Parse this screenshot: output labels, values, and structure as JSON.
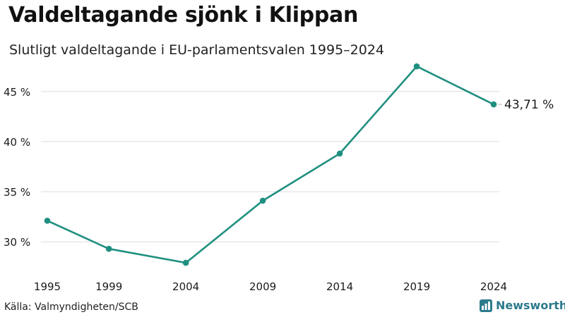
{
  "header": {
    "title": "Valdeltagande sjönk i Klippan",
    "subtitle": "Slutligt valdeltagande i EU-parlamentsvalen 1995–2024"
  },
  "chart_data": {
    "type": "line",
    "title": "Valdeltagande sjönk i Klippan",
    "subtitle": "Slutligt valdeltagande i EU-parlamentsvalen 1995–2024",
    "xlabel": "",
    "ylabel": "",
    "categories": [
      "1995",
      "1999",
      "2004",
      "2009",
      "2014",
      "2019",
      "2024"
    ],
    "series": [
      {
        "name": "Valdeltagande",
        "values": [
          32.1,
          29.3,
          27.9,
          34.1,
          38.8,
          47.5,
          43.71
        ],
        "color": "#1f8f80"
      }
    ],
    "ylim": [
      26.5,
      48.5
    ],
    "yticks": [
      30,
      35,
      40,
      45
    ],
    "ytick_labels": [
      "30 %",
      "35 %",
      "40 %",
      "45 %"
    ],
    "end_label": "43,71 %",
    "grid": "horizontal",
    "legend": "none"
  },
  "footer": {
    "source": "Källa: Valmyndigheten/SCB",
    "brand": "Newsworthy",
    "brand_color": "#2c7a8c"
  },
  "colors": {
    "line": "#1f8f80",
    "grid": "#dddddd",
    "text": "#1a1a1a"
  }
}
